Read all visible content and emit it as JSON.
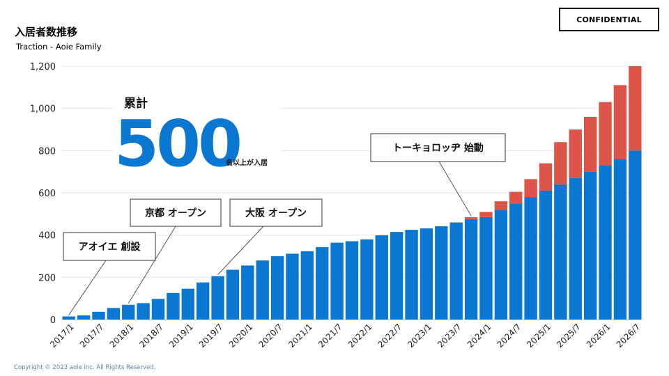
{
  "header": {
    "title": "入居者数推移",
    "subtitle": "Traction - Aoie Family",
    "badge": "CONFIDENTIAL"
  },
  "footer": {
    "copyright": "Copyright © 2023 aoie inc.  All Rights Reserved."
  },
  "colors": {
    "actual": "#0a78d0",
    "projected": "#dd5548",
    "grid": "#e6e6e6"
  },
  "stat": {
    "label": "累計",
    "value": "500",
    "unit": "名以上が入居"
  },
  "chart_data": {
    "type": "bar",
    "stacked": true,
    "categories": [
      "2017/1",
      "2017/4",
      "2017/7",
      "2017/10",
      "2018/1",
      "2018/4",
      "2018/7",
      "2018/10",
      "2019/1",
      "2019/4",
      "2019/7",
      "2019/10",
      "2020/1",
      "2020/4",
      "2020/7",
      "2020/10",
      "2021/1",
      "2021/4",
      "2021/7",
      "2021/10",
      "2022/1",
      "2022/4",
      "2022/7",
      "2022/10",
      "2023/1",
      "2023/4",
      "2023/7",
      "2023/10",
      "2024/1",
      "2024/4",
      "2024/7",
      "2024/10",
      "2025/1",
      "2025/4",
      "2025/7",
      "2025/10",
      "2026/1",
      "2026/4",
      "2026/7"
    ],
    "xtick_labels": [
      "2017/1",
      "2017/7",
      "2018/1",
      "2018/7",
      "2019/1",
      "2019/7",
      "2020/1",
      "2020/7",
      "2021/1",
      "2021/7",
      "2022/1",
      "2022/7",
      "2023/1",
      "2023/7",
      "2024/1",
      "2024/7",
      "2025/1",
      "2025/7",
      "2026/1",
      "2026/7"
    ],
    "series": [
      {
        "name": "actual",
        "color": "#0a78d0",
        "values": [
          15,
          20,
          37,
          55,
          70,
          78,
          98,
          126,
          146,
          176,
          206,
          236,
          256,
          280,
          300,
          312,
          324,
          343,
          364,
          371,
          380,
          399,
          415,
          425,
          432,
          442,
          460,
          475,
          485,
          520,
          550,
          580,
          610,
          640,
          670,
          700,
          730,
          760,
          800
        ]
      },
      {
        "name": "projected",
        "color": "#dd5548",
        "values": [
          0,
          0,
          0,
          0,
          0,
          0,
          0,
          0,
          0,
          0,
          0,
          0,
          0,
          0,
          0,
          0,
          0,
          0,
          0,
          0,
          0,
          0,
          0,
          0,
          0,
          0,
          0,
          10,
          25,
          40,
          55,
          85,
          130,
          200,
          230,
          260,
          300,
          350,
          400
        ]
      }
    ],
    "yticks": [
      0,
      200,
      400,
      600,
      800,
      1000,
      1200
    ],
    "ytick_labels": [
      "0",
      "200",
      "400",
      "600",
      "800",
      "1,000",
      "1,200"
    ],
    "ylim": [
      0,
      1200
    ],
    "annotations": [
      {
        "text": "アオイエ 創設",
        "category_index": 0
      },
      {
        "text": "京都 オープン",
        "category_index": 4
      },
      {
        "text": "大阪 オープン",
        "category_index": 10
      },
      {
        "text": "トーキョロッヂ 始動",
        "category_index": 27
      }
    ]
  }
}
